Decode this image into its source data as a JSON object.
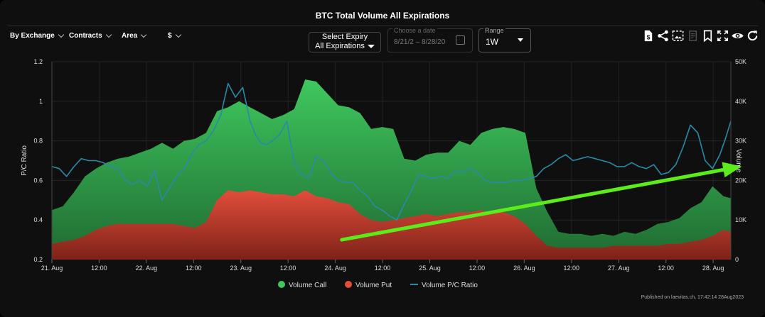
{
  "header": {
    "title": "BTC Total Volume All Expirations",
    "filters": [
      "By Exchange",
      "Contracts",
      "Area",
      "$"
    ],
    "expiry": {
      "label": "Select Expiry",
      "value": "All Expirations"
    },
    "date_range": {
      "label": "Choose a date",
      "start": "8/21/2",
      "sep": "–",
      "end": "8/28/20"
    },
    "range": {
      "label": "Range",
      "value": "1W"
    }
  },
  "toolbar_icons": [
    "dollar-doc-icon",
    "share-icon",
    "image-export-icon",
    "doc-icon",
    "bookmark-icon",
    "fullscreen-icon",
    "eye-icon",
    "refresh-icon"
  ],
  "footer": {
    "published": "Published on laevitas.ch, 17:42:14 28Aug2023"
  },
  "colors": {
    "call_top": "#3fc85e",
    "call_bottom": "#1f6a31",
    "put_top": "#e24d3b",
    "put_bottom": "#7d2218",
    "ratio_line": "#2a8aa8",
    "arrow": "#5cec1c"
  },
  "chart_data": {
    "type": "area",
    "title": "BTC Total Volume All Expirations",
    "x_ticks": [
      "21. Aug",
      "12:00",
      "22. Aug",
      "12:00",
      "23. Aug",
      "12:00",
      "24. Aug",
      "12:00",
      "25. Aug",
      "12:00",
      "26. Aug",
      "12:00",
      "27. Aug",
      "12:00",
      "28. Aug"
    ],
    "x_range_hours": [
      0,
      185
    ],
    "y_left": {
      "label": "P/C Ratio",
      "range": [
        0.2,
        1.2
      ],
      "ticks": [
        "0.2",
        "0.4",
        "0.6",
        "0.8",
        "1",
        "1.2"
      ]
    },
    "y_right": {
      "label": "Volume",
      "range": [
        0,
        50000
      ],
      "ticks": [
        "0",
        "10K",
        "20K",
        "30K",
        "40K",
        "50K"
      ]
    },
    "grid": true,
    "legend": {
      "position": "bottom",
      "items": [
        "Volume Call",
        "Volume Put",
        "Volume P/C Ratio"
      ]
    },
    "series": [
      {
        "name": "Volume Call",
        "axis": "right",
        "x": [
          0,
          3,
          6,
          9,
          12,
          15,
          18,
          21,
          24,
          27,
          30,
          33,
          36,
          39,
          42,
          45,
          48,
          51,
          54,
          57,
          60,
          63,
          66,
          69,
          72,
          75,
          78,
          81,
          84,
          87,
          90,
          93,
          96,
          99,
          102,
          105,
          108,
          111,
          114,
          117,
          120,
          123,
          126,
          129,
          132,
          135,
          138,
          141,
          144,
          147,
          150,
          153,
          156,
          159,
          162,
          165,
          168,
          171,
          174,
          177,
          180,
          183,
          185
        ],
        "values": [
          12500,
          13500,
          17000,
          21000,
          23000,
          24500,
          25500,
          26000,
          27000,
          28000,
          29500,
          28000,
          30000,
          30500,
          32000,
          37500,
          38500,
          40000,
          38500,
          37000,
          35500,
          36500,
          38000,
          45500,
          45000,
          42000,
          39000,
          38500,
          37000,
          33000,
          33500,
          33000,
          25500,
          25000,
          26500,
          27000,
          27000,
          30000,
          29000,
          32000,
          33000,
          33500,
          33000,
          32000,
          18000,
          12000,
          7000,
          6500,
          6500,
          6000,
          6500,
          6000,
          7000,
          6500,
          7500,
          9000,
          9500,
          10500,
          13000,
          14500,
          18500,
          16000,
          15500
        ]
      },
      {
        "name": "Volume Put",
        "axis": "right",
        "x": [
          0,
          3,
          6,
          9,
          12,
          15,
          18,
          21,
          24,
          27,
          30,
          33,
          36,
          39,
          42,
          45,
          48,
          51,
          54,
          57,
          60,
          63,
          66,
          69,
          72,
          75,
          78,
          81,
          84,
          87,
          90,
          93,
          96,
          99,
          102,
          105,
          108,
          111,
          114,
          117,
          120,
          123,
          126,
          129,
          132,
          135,
          138,
          141,
          144,
          147,
          150,
          153,
          156,
          159,
          162,
          165,
          168,
          171,
          174,
          177,
          180,
          183,
          185
        ],
        "values": [
          4000,
          4500,
          5000,
          6000,
          7500,
          8500,
          9000,
          9000,
          9000,
          9000,
          9000,
          9000,
          8500,
          8000,
          9500,
          15000,
          17500,
          17000,
          17500,
          17000,
          16500,
          16500,
          16000,
          17500,
          16000,
          15500,
          14500,
          14000,
          11500,
          10000,
          9500,
          10000,
          10500,
          11000,
          11500,
          11000,
          11500,
          12000,
          12000,
          12500,
          11500,
          12000,
          11000,
          9000,
          6000,
          3500,
          3000,
          3000,
          3000,
          3000,
          3000,
          3500,
          3500,
          3500,
          3500,
          3500,
          4000,
          4000,
          4500,
          5000,
          6000,
          7500,
          7000
        ]
      },
      {
        "name": "Volume P/C Ratio",
        "axis": "left",
        "x": [
          0,
          2,
          4,
          6,
          8,
          10,
          12,
          14,
          16,
          18,
          20,
          22,
          24,
          26,
          28,
          30,
          32,
          34,
          36,
          38,
          40,
          42,
          44,
          46,
          48,
          50,
          52,
          54,
          55.5,
          57,
          58.5,
          60,
          62,
          64,
          66,
          68,
          70,
          72,
          74,
          76,
          78,
          80,
          82,
          84,
          86,
          88,
          90,
          92,
          94,
          96,
          98,
          100,
          102,
          104,
          106,
          108,
          110,
          112,
          114,
          116,
          118,
          120,
          122,
          124,
          126,
          128,
          130,
          132,
          134,
          136,
          138,
          140,
          142,
          144,
          146,
          148,
          150,
          152,
          154,
          156,
          158,
          160,
          162,
          164,
          166,
          168,
          170,
          172,
          174,
          176,
          178,
          180,
          182,
          183.5,
          185
        ],
        "values": [
          0.67,
          0.66,
          0.62,
          0.67,
          0.71,
          0.7,
          0.7,
          0.69,
          0.67,
          0.66,
          0.6,
          0.58,
          0.6,
          0.57,
          0.65,
          0.5,
          0.56,
          0.62,
          0.66,
          0.73,
          0.78,
          0.8,
          0.85,
          0.93,
          1.09,
          1.02,
          1.07,
          0.9,
          0.83,
          0.79,
          0.78,
          0.8,
          0.83,
          0.9,
          0.69,
          0.63,
          0.61,
          0.72,
          0.7,
          0.64,
          0.6,
          0.59,
          0.59,
          0.55,
          0.52,
          0.47,
          0.45,
          0.42,
          0.4,
          0.48,
          0.55,
          0.63,
          0.62,
          0.61,
          0.62,
          0.61,
          0.65,
          0.64,
          0.66,
          0.64,
          0.6,
          0.59,
          0.59,
          0.59,
          0.6,
          0.6,
          0.61,
          0.62,
          0.66,
          0.68,
          0.71,
          0.73,
          0.7,
          0.71,
          0.72,
          0.71,
          0.7,
          0.69,
          0.67,
          0.67,
          0.69,
          0.67,
          0.66,
          0.68,
          0.63,
          0.64,
          0.68,
          0.77,
          0.88,
          0.84,
          0.7,
          0.66,
          0.73,
          0.81,
          0.9
        ]
      }
    ],
    "annotation": {
      "type": "arrow",
      "from": {
        "x": 79,
        "y": 0.3
      },
      "to": {
        "x": 185,
        "y": 0.66
      }
    }
  }
}
